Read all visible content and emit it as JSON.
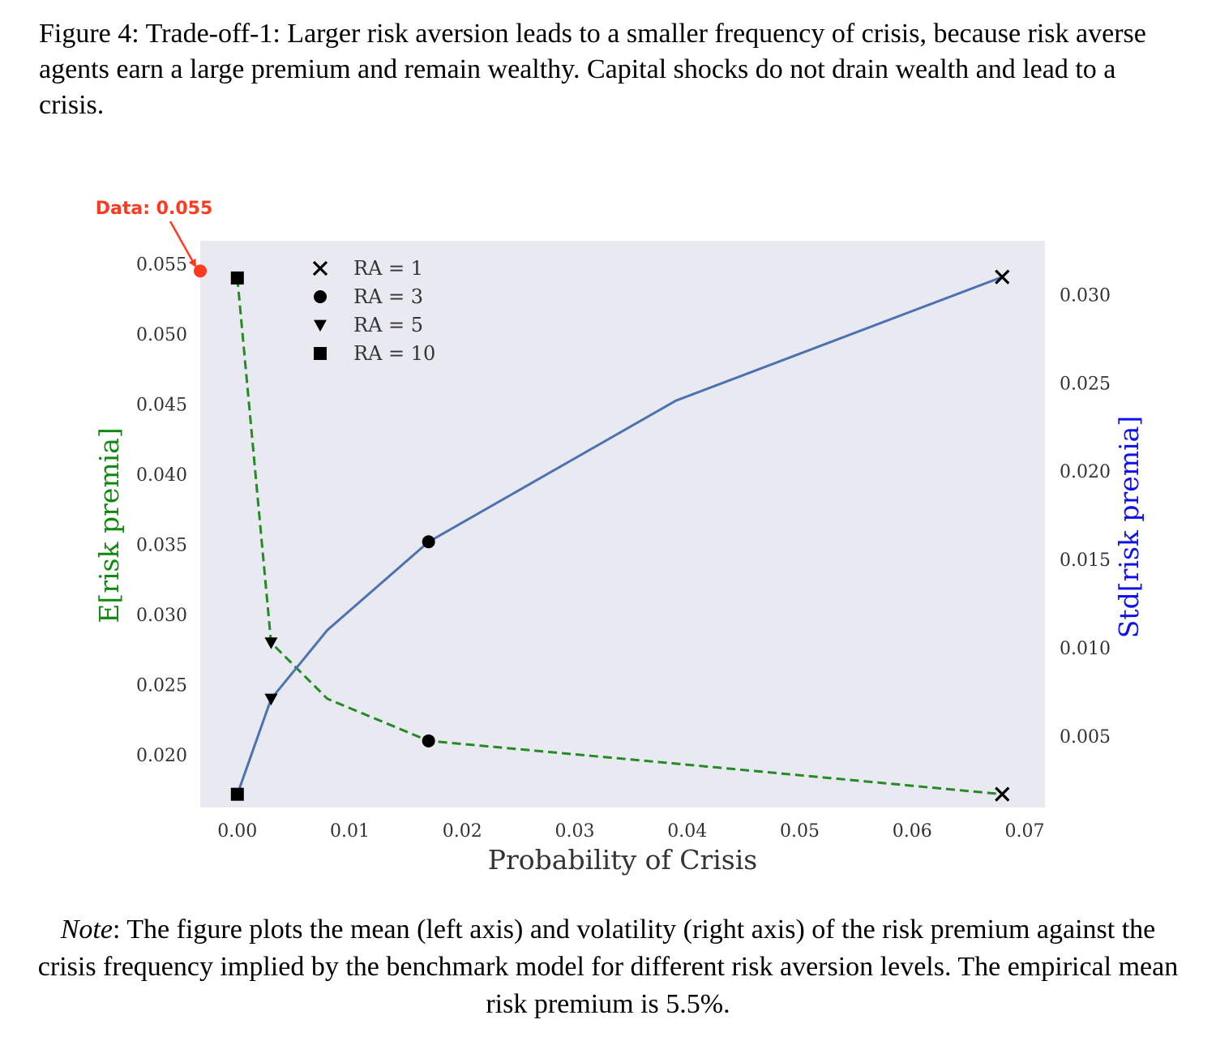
{
  "caption": "Figure 4: Trade-off-1: Larger risk aversion leads to a smaller frequency of crisis, because risk averse agents earn a large premium and remain wealthy. Capital shocks do not drain wealth and lead to a crisis.",
  "note": {
    "label": "Note",
    "text": ": The figure plots the mean (left axis) and volatility (right axis) of the risk premium against the crisis frequency implied by the benchmark model for different risk aversion levels. The empirical mean risk premium is 5.5%."
  },
  "chart_data": {
    "type": "line",
    "xlabel": "Probability of Crisis",
    "ylabel_left": "E[risk premia]",
    "ylabel_right": "Std[risk premia]",
    "xlim": [
      -0.0033,
      0.0718
    ],
    "ylim_left": [
      0.01625,
      0.05665
    ],
    "ylim_right": [
      0.00095,
      0.03305
    ],
    "x_ticks": [
      "0.00",
      "0.01",
      "0.02",
      "0.03",
      "0.04",
      "0.05",
      "0.06",
      "0.07"
    ],
    "y_left_ticks": [
      "0.020",
      "0.025",
      "0.030",
      "0.035",
      "0.040",
      "0.045",
      "0.050",
      "0.055"
    ],
    "y_right_ticks": [
      "0.005",
      "0.010",
      "0.015",
      "0.020",
      "0.025",
      "0.030"
    ],
    "grid": false,
    "legend": {
      "placement": "upper-left",
      "entries": [
        {
          "label": "RA = 1",
          "marker": "x"
        },
        {
          "label": "RA = 3",
          "marker": "circle"
        },
        {
          "label": "RA = 5",
          "marker": "triangle-down"
        },
        {
          "label": "RA = 10",
          "marker": "square"
        }
      ]
    },
    "series": [
      {
        "axis": "left",
        "style": "dashed",
        "color": "#228B22",
        "x": [
          0.0,
          0.003,
          0.008,
          0.017,
          0.04,
          0.068
        ],
        "y": [
          0.054,
          0.028,
          0.024,
          0.021,
          0.0193,
          0.0172
        ]
      },
      {
        "axis": "right",
        "style": "solid",
        "color": "#4C72B0",
        "x": [
          0.0,
          0.003,
          0.008,
          0.017,
          0.039,
          0.068
        ],
        "y": [
          0.0017,
          0.0071,
          0.011,
          0.016,
          0.024,
          0.031
        ]
      }
    ],
    "markers": [
      {
        "ra": "RA = 10",
        "marker": "square",
        "x": 0.0,
        "y_left": 0.054,
        "y_right": 0.0017
      },
      {
        "ra": "RA = 5",
        "marker": "triangle-down",
        "x": 0.003,
        "y_left": 0.028,
        "y_right": 0.0071
      },
      {
        "ra": "RA = 3",
        "marker": "circle",
        "x": 0.017,
        "y_left": 0.021,
        "y_right": 0.016
      },
      {
        "ra": "RA = 1",
        "marker": "x",
        "x": 0.068,
        "y_left": 0.0172,
        "y_right": 0.031
      }
    ],
    "annotation": {
      "text": "Data: 0.055",
      "color": "#FF3B1F",
      "x": -0.0033,
      "y_left": 0.0545
    },
    "colors": {
      "plot_background": "#E9E9F2",
      "left_axis_label": "#118811",
      "right_axis_label": "#1111EE",
      "marker": "#000000"
    }
  }
}
